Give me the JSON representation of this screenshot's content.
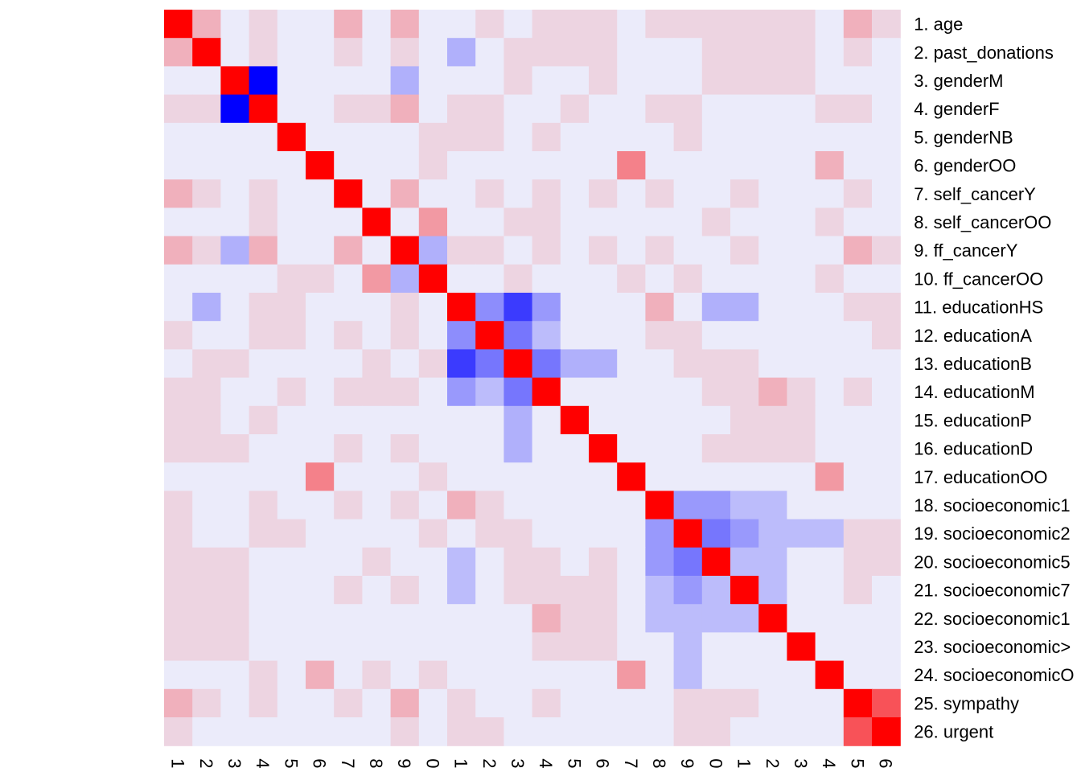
{
  "chart_data": {
    "type": "heatmap",
    "title": "",
    "xlabel": "",
    "ylabel": "",
    "value_range": [
      -1,
      1
    ],
    "colors": {
      "negative": "#0000FF",
      "zero": "#EBEBFA",
      "positive": "#FF0000"
    },
    "row_labels": [
      "1. age",
      "2. past_donations",
      "3. genderM",
      "4. genderF",
      "5. genderNB",
      "6. genderOO",
      "7. self_cancerY",
      "8. self_cancerOO",
      "9. ff_cancerY",
      "10. ff_cancerOO",
      "11. educationHS",
      "12. educationA",
      "13. educationB",
      "14. educationM",
      "15. educationP",
      "16. educationD",
      "17. educationOO",
      "18. socioeconomic1",
      "19. socioeconomic2",
      "20. socioeconomic5",
      "21. socioeconomic7",
      "22. socioeconomic1",
      "23. socioeconomic>",
      "24. socioeconomicO",
      "25. sympathy",
      "26. urgent"
    ],
    "col_labels": [
      "1",
      "2",
      "3",
      "4",
      "5",
      "6",
      "7",
      "8",
      "9",
      "0",
      "1",
      "2",
      "3",
      "4",
      "5",
      "6",
      "7",
      "8",
      "9",
      "0",
      "1",
      "2",
      "3",
      "4",
      "5",
      "6"
    ],
    "matrix": [
      [
        1,
        0.25,
        0,
        0.1,
        0,
        0,
        0.25,
        0,
        0.25,
        0,
        0,
        0.1,
        0,
        0.1,
        0.1,
        0.1,
        0,
        0.1,
        0.1,
        0.1,
        0.1,
        0.1,
        0.1,
        0,
        0.25,
        0.1
      ],
      [
        0.25,
        1,
        0,
        0.1,
        0,
        0,
        0.1,
        0,
        0.1,
        0,
        -0.25,
        0,
        0.1,
        0.1,
        0.1,
        0.1,
        0,
        0,
        0,
        0.1,
        0.1,
        0.1,
        0.1,
        0,
        0.1,
        0
      ],
      [
        0,
        0,
        1,
        -1,
        0,
        0,
        0,
        0,
        -0.25,
        0,
        0,
        0,
        0.1,
        0,
        0,
        0.1,
        0,
        0,
        0,
        0.1,
        0.1,
        0.1,
        0.1,
        0,
        0,
        0
      ],
      [
        0.1,
        0.1,
        -1,
        1,
        0,
        0,
        0.1,
        0.1,
        0.25,
        0,
        0.1,
        0.1,
        0,
        0,
        0.1,
        0,
        0,
        0.1,
        0.1,
        0,
        0,
        0,
        0,
        0.1,
        0.1,
        0
      ],
      [
        0,
        0,
        0,
        0,
        1,
        0,
        0,
        0,
        0,
        0.1,
        0.1,
        0.1,
        0,
        0.1,
        0,
        0,
        0,
        0,
        0.1,
        0,
        0,
        0,
        0,
        0,
        0,
        0
      ],
      [
        0,
        0,
        0,
        0,
        0,
        1,
        0,
        0,
        0,
        0.1,
        0,
        0,
        0,
        0,
        0,
        0,
        0.45,
        0,
        0,
        0,
        0,
        0,
        0,
        0.25,
        0,
        0
      ],
      [
        0.25,
        0.1,
        0,
        0.1,
        0,
        0,
        1,
        0,
        0.25,
        0,
        0,
        0.1,
        0,
        0.1,
        0,
        0.1,
        0,
        0.1,
        0,
        0,
        0.1,
        0,
        0,
        0,
        0.1,
        0
      ],
      [
        0,
        0,
        0,
        0.1,
        0,
        0,
        0,
        1,
        0,
        0.35,
        0,
        0,
        0.1,
        0.1,
        0,
        0,
        0,
        0,
        0,
        0.1,
        0,
        0,
        0,
        0.1,
        0,
        0
      ],
      [
        0.25,
        0.1,
        -0.25,
        0.25,
        0,
        0,
        0.25,
        0,
        1,
        -0.25,
        0.1,
        0.1,
        0,
        0.1,
        0,
        0.1,
        0,
        0.1,
        0,
        0,
        0.1,
        0,
        0,
        0,
        0.25,
        0.1
      ],
      [
        0,
        0,
        0,
        0,
        0.1,
        0.1,
        0,
        0.35,
        -0.25,
        1,
        0,
        0,
        0.1,
        0,
        0,
        0,
        0.1,
        0,
        0.1,
        0,
        0,
        0,
        0,
        0.1,
        0,
        0
      ],
      [
        0,
        -0.25,
        0,
        0.1,
        0.1,
        0,
        0,
        0,
        0.1,
        0,
        1,
        -0.4,
        -0.75,
        -0.35,
        0,
        0,
        0,
        0.25,
        0,
        -0.25,
        -0.25,
        0,
        0,
        0,
        0.1,
        0.1
      ],
      [
        0.1,
        0,
        0,
        0.1,
        0.1,
        0,
        0.1,
        0,
        0.1,
        0,
        -0.4,
        1,
        -0.5,
        -0.2,
        0,
        0,
        0,
        0.1,
        0.1,
        0,
        0,
        0,
        0,
        0,
        0,
        0.1
      ],
      [
        0,
        0.1,
        0.1,
        0,
        0,
        0,
        0,
        0.1,
        0,
        0.1,
        -0.75,
        -0.5,
        1,
        -0.5,
        -0.25,
        -0.25,
        0,
        0,
        0.1,
        0.1,
        0.1,
        0,
        0,
        0,
        0,
        0
      ],
      [
        0.1,
        0.1,
        0,
        0,
        0.1,
        0,
        0.1,
        0.1,
        0.1,
        0,
        -0.35,
        -0.2,
        -0.5,
        1,
        0,
        0,
        0,
        0,
        0,
        0.1,
        0.1,
        0.25,
        0.1,
        0,
        0.1,
        0
      ],
      [
        0.1,
        0.1,
        0,
        0.1,
        0,
        0,
        0,
        0,
        0,
        0,
        0,
        0,
        -0.25,
        0,
        1,
        0,
        0,
        0,
        0,
        0,
        0.1,
        0.1,
        0.1,
        0,
        0,
        0
      ],
      [
        0.1,
        0.1,
        0.1,
        0,
        0,
        0,
        0.1,
        0,
        0.1,
        0,
        0,
        0,
        -0.25,
        0,
        0,
        1,
        0,
        0,
        0,
        0.1,
        0.1,
        0.1,
        0.1,
        0,
        0,
        0
      ],
      [
        0,
        0,
        0,
        0,
        0,
        0.45,
        0,
        0,
        0,
        0.1,
        0,
        0,
        0,
        0,
        0,
        0,
        1,
        0,
        0,
        0,
        0,
        0,
        0,
        0.35,
        0,
        0
      ],
      [
        0.1,
        0,
        0,
        0.1,
        0,
        0,
        0.1,
        0,
        0.1,
        0,
        0.25,
        0.1,
        0,
        0,
        0,
        0,
        0,
        1,
        -0.35,
        -0.35,
        -0.2,
        -0.2,
        0,
        0,
        0,
        0
      ],
      [
        0.1,
        0,
        0,
        0.1,
        0.1,
        0,
        0,
        0,
        0,
        0.1,
        0,
        0.1,
        0.1,
        0,
        0,
        0,
        0,
        -0.35,
        1,
        -0.5,
        -0.35,
        -0.2,
        -0.2,
        -0.2,
        0.1,
        0.1
      ],
      [
        0.1,
        0.1,
        0.1,
        0,
        0,
        0,
        0,
        0.1,
        0,
        0,
        -0.2,
        0,
        0.1,
        0.1,
        0,
        0.1,
        0,
        -0.35,
        -0.5,
        1,
        -0.2,
        -0.2,
        0,
        0,
        0.1,
        0.1
      ],
      [
        0.1,
        0.1,
        0.1,
        0,
        0,
        0,
        0.1,
        0,
        0.1,
        0,
        -0.2,
        0,
        0.1,
        0.1,
        0.1,
        0.1,
        0,
        -0.2,
        -0.35,
        -0.2,
        1,
        -0.2,
        0,
        0,
        0.1,
        0
      ],
      [
        0.1,
        0.1,
        0.1,
        0,
        0,
        0,
        0,
        0,
        0,
        0,
        0,
        0,
        0,
        0.25,
        0.1,
        0.1,
        0,
        -0.2,
        -0.2,
        -0.2,
        -0.2,
        1,
        0,
        0,
        0,
        0
      ],
      [
        0.1,
        0.1,
        0.1,
        0,
        0,
        0,
        0,
        0,
        0,
        0,
        0,
        0,
        0,
        0.1,
        0.1,
        0.1,
        0,
        0,
        -0.2,
        0,
        0,
        0,
        1,
        0,
        0,
        0
      ],
      [
        0,
        0,
        0,
        0.1,
        0,
        0.25,
        0,
        0.1,
        0,
        0.1,
        0,
        0,
        0,
        0,
        0,
        0,
        0.35,
        0,
        -0.2,
        0,
        0,
        0,
        0,
        1,
        0,
        0
      ],
      [
        0.25,
        0.1,
        0,
        0.1,
        0,
        0,
        0.1,
        0,
        0.25,
        0,
        0.1,
        0,
        0,
        0.1,
        0,
        0,
        0,
        0,
        0.1,
        0.1,
        0.1,
        0,
        0,
        0,
        1,
        0.65
      ],
      [
        0.1,
        0,
        0,
        0,
        0,
        0,
        0,
        0,
        0.1,
        0,
        0.1,
        0.1,
        0,
        0,
        0,
        0,
        0,
        0,
        0.1,
        0.1,
        0,
        0,
        0,
        0,
        0.65,
        1
      ]
    ]
  }
}
